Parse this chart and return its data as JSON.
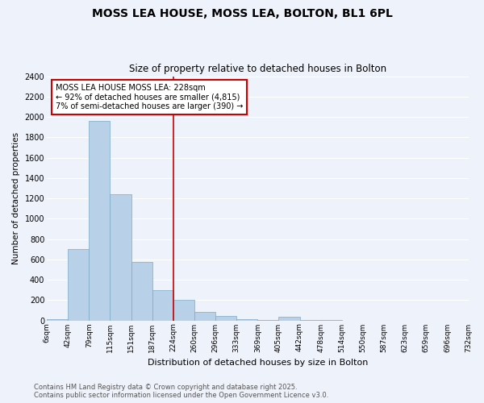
{
  "title": "MOSS LEA HOUSE, MOSS LEA, BOLTON, BL1 6PL",
  "subtitle": "Size of property relative to detached houses in Bolton",
  "xlabel": "Distribution of detached houses by size in Bolton",
  "ylabel": "Number of detached properties",
  "bar_color": "#b8d0e8",
  "bar_edge_color": "#7aaac8",
  "background_color": "#eef2fa",
  "grid_color": "#ffffff",
  "bin_labels": [
    "6sqm",
    "42sqm",
    "79sqm",
    "115sqm",
    "151sqm",
    "187sqm",
    "224sqm",
    "260sqm",
    "296sqm",
    "333sqm",
    "369sqm",
    "405sqm",
    "442sqm",
    "478sqm",
    "514sqm",
    "550sqm",
    "587sqm",
    "623sqm",
    "659sqm",
    "696sqm",
    "732sqm"
  ],
  "bar_values": [
    15,
    700,
    1960,
    1240,
    575,
    300,
    200,
    80,
    45,
    15,
    5,
    35,
    5,
    2,
    0,
    0,
    0,
    0,
    0,
    0
  ],
  "ylim": [
    0,
    2400
  ],
  "yticks": [
    0,
    200,
    400,
    600,
    800,
    1000,
    1200,
    1400,
    1600,
    1800,
    2000,
    2200,
    2400
  ],
  "property_line_label": "MOSS LEA HOUSE MOSS LEA: 228sqm",
  "annotation_line1": "← 92% of detached houses are smaller (4,815)",
  "annotation_line2": "7% of semi-detached houses are larger (390) →",
  "footer_line1": "Contains HM Land Registry data © Crown copyright and database right 2025.",
  "footer_line2": "Contains public sector information licensed under the Open Government Licence v3.0."
}
